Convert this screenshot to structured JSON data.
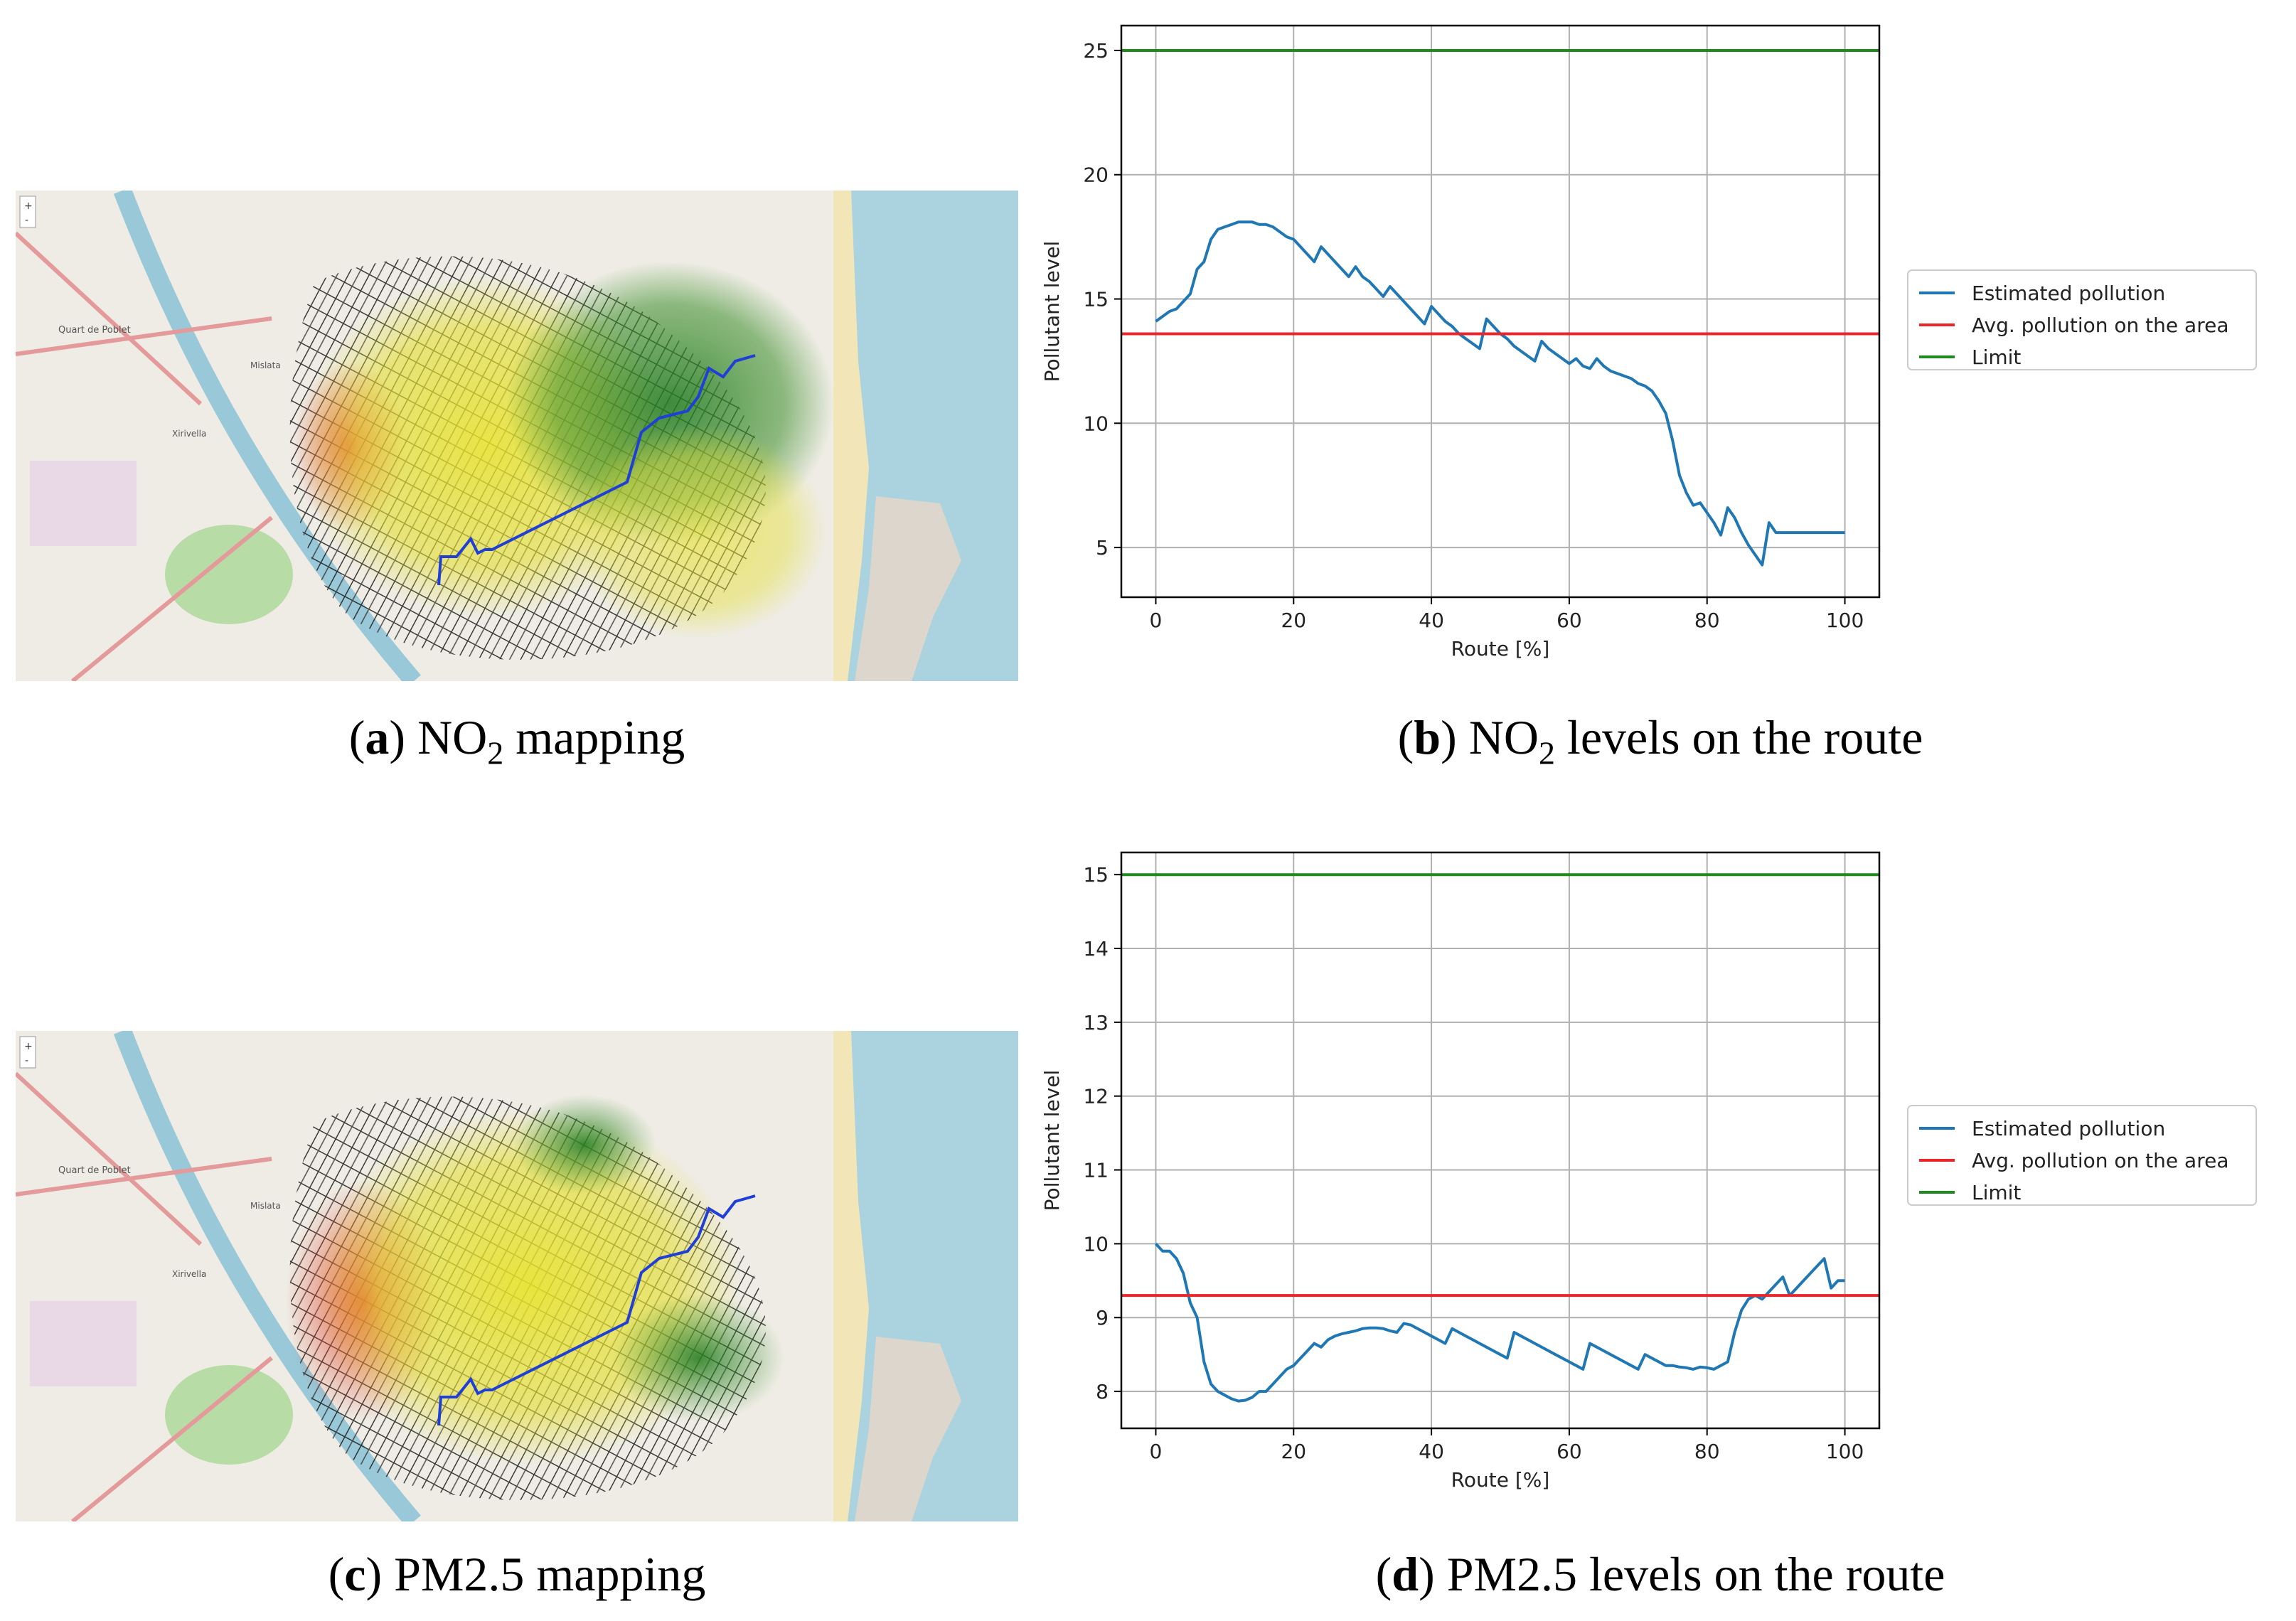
{
  "captions": {
    "a": {
      "letter": "a",
      "prefix": "NO",
      "sub": "2",
      "suffix": " mapping"
    },
    "b": {
      "letter": "b",
      "prefix": "NO",
      "sub": "2",
      "suffix": " levels on the route"
    },
    "c": {
      "letter": "c",
      "prefix": "PM2.5",
      "sub": "",
      "suffix": " mapping"
    },
    "d": {
      "letter": "d",
      "prefix": "PM2.5",
      "sub": "",
      "suffix": " levels on the route"
    }
  },
  "maps": {
    "labels": [
      "Quart de Poblet",
      "Mislata",
      "Xirivella"
    ],
    "route_color": "#1f3fd6"
  },
  "chart_data": [
    {
      "type": "line",
      "title": "",
      "xlabel": "Route [%]",
      "ylabel": "Pollutant level",
      "xlim": [
        -5,
        105
      ],
      "ylim": [
        3,
        26
      ],
      "xticks": [
        0,
        20,
        40,
        60,
        80,
        100
      ],
      "yticks": [
        5,
        10,
        15,
        20,
        25
      ],
      "grid": true,
      "legend_position": "right",
      "series": [
        {
          "name": "Estimated pollution",
          "color": "#1f77b4",
          "x": [
            0,
            1,
            2,
            3,
            4,
            5,
            6,
            7,
            8,
            9,
            10,
            11,
            12,
            13,
            14,
            15,
            16,
            17,
            18,
            19,
            20,
            21,
            22,
            23,
            24,
            25,
            26,
            27,
            28,
            29,
            30,
            31,
            32,
            33,
            34,
            35,
            36,
            37,
            38,
            39,
            40,
            41,
            42,
            43,
            44,
            45,
            46,
            47,
            48,
            49,
            50,
            51,
            52,
            53,
            54,
            55,
            56,
            57,
            58,
            59,
            60,
            61,
            62,
            63,
            64,
            65,
            66,
            67,
            68,
            69,
            70,
            71,
            72,
            73,
            74,
            75,
            76,
            77,
            78,
            79,
            80,
            81,
            82,
            83,
            84,
            85,
            86,
            87,
            88,
            89,
            90,
            91,
            92,
            93,
            94,
            95,
            96,
            97,
            98,
            99,
            100
          ],
          "y": [
            14.1,
            14.3,
            14.5,
            14.6,
            14.9,
            15.2,
            16.2,
            16.5,
            17.4,
            17.8,
            17.9,
            18.0,
            18.1,
            18.1,
            18.1,
            18.0,
            18.0,
            17.9,
            17.7,
            17.5,
            17.4,
            17.1,
            16.8,
            16.5,
            17.1,
            16.8,
            16.5,
            16.2,
            15.9,
            16.3,
            15.9,
            15.7,
            15.4,
            15.1,
            15.5,
            15.2,
            14.9,
            14.6,
            14.3,
            14.0,
            14.7,
            14.4,
            14.1,
            13.9,
            13.6,
            13.4,
            13.2,
            13.0,
            14.2,
            13.9,
            13.6,
            13.4,
            13.1,
            12.9,
            12.7,
            12.5,
            13.3,
            13.0,
            12.8,
            12.6,
            12.4,
            12.6,
            12.3,
            12.2,
            12.6,
            12.3,
            12.1,
            12.0,
            11.9,
            11.8,
            11.6,
            11.5,
            11.3,
            10.9,
            10.4,
            9.3,
            7.9,
            7.2,
            6.7,
            6.8,
            6.4,
            6.0,
            5.5,
            6.6,
            6.2,
            5.6,
            5.1,
            4.7,
            4.3,
            6.0,
            5.6,
            5.6,
            5.6,
            5.6,
            5.6,
            5.6,
            5.6,
            5.6,
            5.6,
            5.6,
            5.6
          ]
        },
        {
          "name": "Avg. pollution on the area",
          "color": "#e8262b",
          "x": [
            -5,
            105
          ],
          "y": [
            13.6,
            13.6
          ]
        },
        {
          "name": "Limit",
          "color": "#1f8b1f",
          "x": [
            -5,
            105
          ],
          "y": [
            25,
            25
          ]
        }
      ]
    },
    {
      "type": "line",
      "title": "",
      "xlabel": "Route [%]",
      "ylabel": "Pollutant level",
      "xlim": [
        -5,
        105
      ],
      "ylim": [
        7.5,
        15.3
      ],
      "xticks": [
        0,
        20,
        40,
        60,
        80,
        100
      ],
      "yticks": [
        8,
        9,
        10,
        11,
        12,
        13,
        14,
        15
      ],
      "grid": true,
      "legend_position": "right",
      "series": [
        {
          "name": "Estimated pollution",
          "color": "#1f77b4",
          "x": [
            0,
            1,
            2,
            3,
            4,
            5,
            6,
            7,
            8,
            9,
            10,
            11,
            12,
            13,
            14,
            15,
            16,
            17,
            18,
            19,
            20,
            21,
            22,
            23,
            24,
            25,
            26,
            27,
            28,
            29,
            30,
            31,
            32,
            33,
            34,
            35,
            36,
            37,
            38,
            39,
            40,
            41,
            42,
            43,
            44,
            45,
            46,
            47,
            48,
            49,
            50,
            51,
            52,
            53,
            54,
            55,
            56,
            57,
            58,
            59,
            60,
            61,
            62,
            63,
            64,
            65,
            66,
            67,
            68,
            69,
            70,
            71,
            72,
            73,
            74,
            75,
            76,
            77,
            78,
            79,
            80,
            81,
            82,
            83,
            84,
            85,
            86,
            87,
            88,
            89,
            90,
            91,
            92,
            93,
            94,
            95,
            96,
            97,
            98,
            99,
            100
          ],
          "y": [
            10.0,
            9.9,
            9.9,
            9.8,
            9.6,
            9.2,
            9.0,
            8.4,
            8.1,
            8.0,
            7.95,
            7.9,
            7.87,
            7.88,
            7.92,
            8.0,
            8.0,
            8.1,
            8.2,
            8.3,
            8.35,
            8.45,
            8.55,
            8.65,
            8.6,
            8.7,
            8.75,
            8.78,
            8.8,
            8.82,
            8.85,
            8.86,
            8.86,
            8.85,
            8.82,
            8.8,
            8.92,
            8.9,
            8.85,
            8.8,
            8.75,
            8.7,
            8.65,
            8.85,
            8.8,
            8.75,
            8.7,
            8.65,
            8.6,
            8.55,
            8.5,
            8.45,
            8.8,
            8.75,
            8.7,
            8.65,
            8.6,
            8.55,
            8.5,
            8.45,
            8.4,
            8.35,
            8.3,
            8.65,
            8.6,
            8.55,
            8.5,
            8.45,
            8.4,
            8.35,
            8.3,
            8.5,
            8.45,
            8.4,
            8.35,
            8.35,
            8.33,
            8.32,
            8.3,
            8.33,
            8.32,
            8.3,
            8.35,
            8.4,
            8.8,
            9.1,
            9.25,
            9.3,
            9.25,
            9.35,
            9.45,
            9.55,
            9.3,
            9.4,
            9.5,
            9.6,
            9.7,
            9.8,
            9.4,
            9.5,
            9.5
          ]
        },
        {
          "name": "Avg. pollution on the area",
          "color": "#e8262b",
          "x": [
            -5,
            105
          ],
          "y": [
            9.3,
            9.3
          ]
        },
        {
          "name": "Limit",
          "color": "#1f8b1f",
          "x": [
            -5,
            105
          ],
          "y": [
            15,
            15
          ]
        }
      ]
    }
  ]
}
